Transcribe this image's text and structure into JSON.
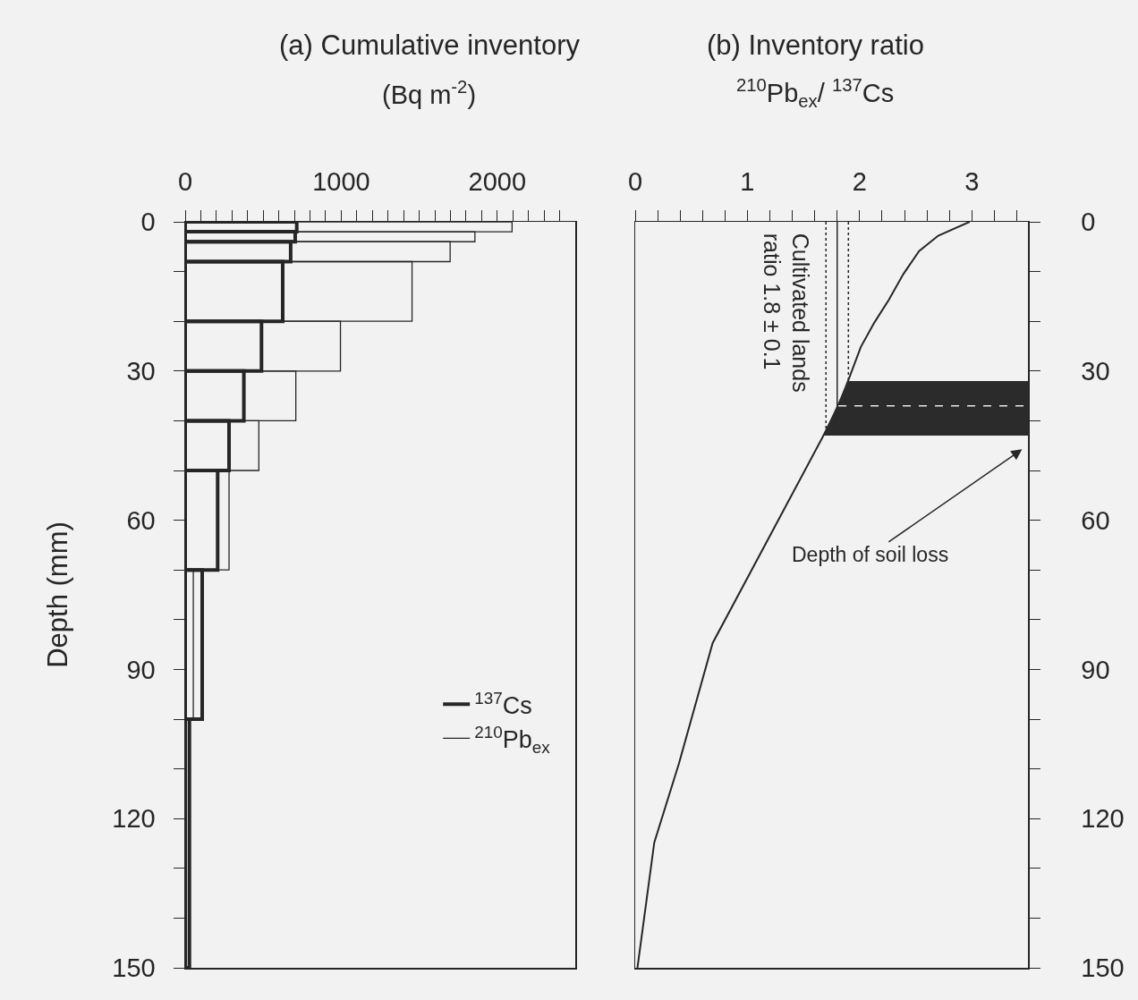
{
  "chart_data": [
    {
      "type": "histogram",
      "orientation": "horizontal",
      "title": "(a) Cumulative inventory",
      "subtitle": "(Bq m$^{-2}$)",
      "ylabel": "Depth (mm)",
      "bins": [
        0,
        2,
        4,
        8,
        20,
        30,
        40,
        50,
        70,
        100,
        150
      ],
      "series": [
        {
          "name": "$^{137}$Cs",
          "color": "#262626",
          "values": [
            715,
            705,
            676,
            625,
            489,
            376,
            281,
            208,
            109,
            27
          ]
        },
        {
          "name": "$^{210}$Pb$_{ex}$",
          "color": "#262626",
          "values": [
            2095,
            1857,
            1698,
            1454,
            995,
            709,
            472,
            281,
            52,
            null
          ]
        }
      ],
      "xlim": [
        0,
        2500
      ],
      "xticks": [
        0,
        {
          "value": 100,
          "label": null
        },
        {
          "value": 200,
          "label": null
        },
        {
          "value": 300,
          "label": null
        },
        {
          "value": 400,
          "label": null
        },
        {
          "value": 500,
          "label": null
        },
        {
          "value": 600,
          "label": null
        },
        {
          "value": 700,
          "label": null
        },
        {
          "value": 800,
          "label": null
        },
        {
          "value": 900,
          "label": null
        },
        1000,
        {
          "value": 1100,
          "label": null
        },
        {
          "value": 1200,
          "label": null
        },
        {
          "value": 1300,
          "label": null
        },
        {
          "value": 1400,
          "label": null
        },
        {
          "value": 1500,
          "label": null
        },
        {
          "value": 1600,
          "label": null
        },
        {
          "value": 1700,
          "label": null
        },
        {
          "value": 1800,
          "label": null
        },
        {
          "value": 1900,
          "label": null
        },
        2000,
        {
          "value": 2100,
          "label": null
        },
        {
          "value": 2200,
          "label": null
        },
        {
          "value": 2300,
          "label": null
        },
        {
          "value": 2400,
          "label": null
        }
      ],
      "ylim": [
        150,
        0
      ],
      "yticks": [
        0,
        {
          "value": 10,
          "label": null
        },
        {
          "value": 20,
          "label": null
        },
        30,
        {
          "value": 40,
          "label": null
        },
        {
          "value": 50,
          "label": null
        },
        60,
        {
          "value": 70,
          "label": null
        },
        {
          "value": 80,
          "label": null
        },
        90,
        {
          "value": 100,
          "label": null
        },
        {
          "value": 110,
          "label": null
        },
        120,
        {
          "value": 130,
          "label": null
        },
        {
          "value": 140,
          "label": null
        },
        150
      ],
      "legend": "right"
    },
    {
      "type": "line",
      "title": "(b) Inventory ratio",
      "subtitle": "$^{210}$Pb$_{ex}$/ $^{137}$Cs",
      "series": [
        {
          "color": "#262626",
          "axis": "y2",
          "x": [
            2.98,
            2.7,
            2.53,
            2.39,
            2.26,
            2.13,
            2.01,
            1.9,
            1.81,
            1.67,
            0.69,
            0.39,
            0.17,
            0.02
          ],
          "values": [
            0,
            2.8,
            5.9,
            10.5,
            15.7,
            20.3,
            25.2,
            31.8,
            37,
            43.3,
            84.7,
            108.9,
            124.8,
            150
          ]
        }
      ],
      "xlim": [
        0,
        3.5
      ],
      "xticks": [
        0,
        {
          "value": 0.2,
          "label": null
        },
        {
          "value": 0.4,
          "label": null
        },
        {
          "value": 0.6,
          "label": null
        },
        {
          "value": 0.8,
          "label": null
        },
        1,
        {
          "value": 1.2,
          "label": null
        },
        {
          "value": 1.4,
          "label": null
        },
        {
          "value": 1.6,
          "label": null
        },
        {
          "value": 1.8,
          "label": null
        },
        2,
        {
          "value": 2.2,
          "label": null
        },
        {
          "value": 2.4,
          "label": null
        },
        {
          "value": 2.6,
          "label": null
        },
        {
          "value": 2.8,
          "label": null
        },
        3,
        {
          "value": 3.2,
          "label": null
        },
        {
          "value": 3.4,
          "label": null
        }
      ],
      "y2lim": [
        150,
        0
      ],
      "y2ticks": [
        0,
        {
          "value": 10,
          "label": null
        },
        {
          "value": 20,
          "label": null
        },
        30,
        {
          "value": 40,
          "label": null
        },
        {
          "value": 50,
          "label": null
        },
        60,
        {
          "value": 70,
          "label": null
        },
        {
          "value": 80,
          "label": null
        },
        90,
        {
          "value": 100,
          "label": null
        },
        {
          "value": 110,
          "label": null
        },
        120,
        {
          "value": 130,
          "label": null
        },
        {
          "value": 140,
          "label": null
        },
        150
      ],
      "ref_lines": [
        {
          "axis": "x",
          "value": 1.8,
          "label": "Cultivated lands\nratio 1.8 ± 0.1",
          "line_style": "solid"
        },
        {
          "axis": "x",
          "value": 1.7,
          "line_style": "dotted"
        },
        {
          "axis": "x",
          "value": 1.9,
          "line_style": "dotted"
        },
        {
          "axis": "y2",
          "value": 37,
          "line_style": "dashed",
          "color": "#e8e8e8"
        }
      ],
      "bands": [
        {
          "axis": "y2",
          "from": 32,
          "to": 43,
          "color": "#2b2b2b"
        }
      ],
      "annotations": [
        "Depth of soil loss"
      ]
    }
  ]
}
